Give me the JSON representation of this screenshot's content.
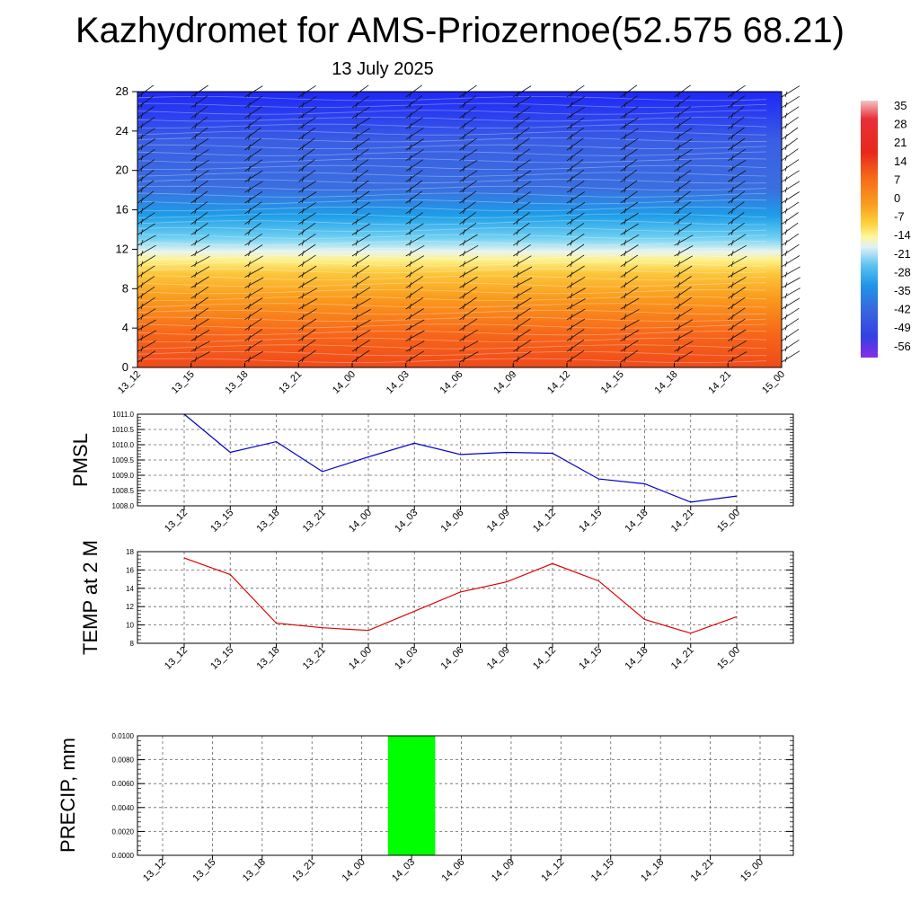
{
  "title": "Kazhydromet for AMS-Priozernoe(52.575 68.21)",
  "subtitle": "13 July 2025",
  "colors": {
    "pmsl_line": "#0000cc",
    "temp_line": "#e00000",
    "precip_bar": "#00ff00"
  },
  "chart_data": [
    {
      "type": "heatmap",
      "name": "temperature cross-section",
      "x": [
        "13_12",
        "13_15",
        "13_18",
        "13_21",
        "14_00",
        "14_03",
        "14_06",
        "14_09",
        "14_12",
        "14_15",
        "14_18",
        "14_21",
        "15_00"
      ],
      "yticks": [
        "0",
        "4",
        "8",
        "12",
        "16",
        "20",
        "24",
        "28"
      ],
      "ylim": [
        0,
        28
      ],
      "note": "filled contours of temperature with wind barbs",
      "colorbar": {
        "labels": [
          "35",
          "28",
          "21",
          "14",
          "7",
          "0",
          "-7",
          "-14",
          "-21",
          "-28",
          "-35",
          "-42",
          "-49",
          "-56"
        ],
        "range": [
          -63,
          42
        ]
      },
      "xlabel": "",
      "ylabel": ""
    },
    {
      "type": "line",
      "ylabel": "PMSL",
      "x": [
        "13_12",
        "13_15",
        "13_18",
        "13_21",
        "14_00",
        "14_03",
        "14_06",
        "14_09",
        "14_12",
        "14_15",
        "14_18",
        "14_21",
        "15_00"
      ],
      "values": [
        1011.0,
        1009.75,
        1010.1,
        1009.12,
        1009.6,
        1010.05,
        1009.68,
        1009.75,
        1009.72,
        1008.88,
        1008.72,
        1008.12,
        1008.32
      ],
      "yticks": [
        "1011.0",
        "1010.5",
        "1010.0",
        "1009.5",
        "1009.0",
        "1008.5",
        "1008.0"
      ],
      "ylim": [
        1008.0,
        1011.0
      ],
      "grid": true
    },
    {
      "type": "line",
      "ylabel": "TEMP at 2 M",
      "x": [
        "13_12",
        "13_15",
        "13_18",
        "13_21",
        "14_00",
        "14_03",
        "14_06",
        "14_09",
        "14_12",
        "14_15",
        "14_18",
        "14_21",
        "15_00"
      ],
      "values": [
        17.3,
        15.5,
        10.2,
        9.7,
        9.4,
        11.5,
        13.6,
        14.7,
        16.7,
        14.8,
        10.6,
        9.1,
        10.9
      ],
      "yticks": [
        "18",
        "16",
        "14",
        "12",
        "10",
        "8"
      ],
      "ylim": [
        8,
        18
      ],
      "grid": true
    },
    {
      "type": "bar",
      "ylabel": "PRECIP, mm",
      "x": [
        "13_12",
        "13_15",
        "13_18",
        "13_21",
        "14_00",
        "14_03",
        "14_06",
        "14_09",
        "14_12",
        "14_15",
        "14_18",
        "14_21",
        "15_00"
      ],
      "values": [
        0,
        0,
        0,
        0,
        0,
        0.01,
        0,
        0,
        0,
        0,
        0,
        0,
        0
      ],
      "yticks": [
        "0.0100",
        "0.0080",
        "0.0060",
        "0.0040",
        "0.0020",
        "0.0000"
      ],
      "ylim": [
        0,
        0.01
      ],
      "grid": true
    }
  ]
}
